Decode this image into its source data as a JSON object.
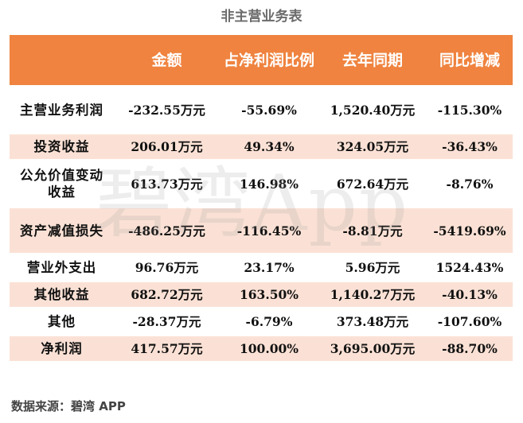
{
  "title": "非主营业务表",
  "headers": [
    "",
    "金额",
    "占净利润比例",
    "去年同期",
    "同比增减"
  ],
  "rows": [
    {
      "name": "主营业务利润",
      "amount": "-232.55万元",
      "ratio": "-55.69%",
      "last_year": "1,520.40万元",
      "yoy": "-115.30%"
    },
    {
      "name": "投资收益",
      "amount": "206.01万元",
      "ratio": "49.34%",
      "last_year": "324.05万元",
      "yoy": "-36.43%"
    },
    {
      "name": "公允价值变动收益",
      "amount": "613.73万元",
      "ratio": "146.98%",
      "last_year": "672.64万元",
      "yoy": "-8.76%"
    },
    {
      "name": "资产减值损失",
      "amount": "-486.25万元",
      "ratio": "-116.45%",
      "last_year": "-8.81万元",
      "yoy": "-5419.69%"
    },
    {
      "name": "营业外支出",
      "amount": "96.76万元",
      "ratio": "23.17%",
      "last_year": "5.96万元",
      "yoy": "1524.43%"
    },
    {
      "name": "其他收益",
      "amount": "682.72万元",
      "ratio": "163.50%",
      "last_year": "1,140.27万元",
      "yoy": "-40.13%"
    },
    {
      "name": "其他",
      "amount": "-28.37万元",
      "ratio": "-6.79%",
      "last_year": "373.48万元",
      "yoy": "-107.60%"
    },
    {
      "name": "净利润",
      "amount": "417.57万元",
      "ratio": "100.00%",
      "last_year": "3,695.00万元",
      "yoy": "-88.70%"
    }
  ],
  "watermark": "碧湾App",
  "source": "数据来源：碧湾 APP",
  "colors": {
    "header_bg": "#ef833f",
    "band_bg": "#fbe1d5",
    "header_text": "#ffffff"
  }
}
